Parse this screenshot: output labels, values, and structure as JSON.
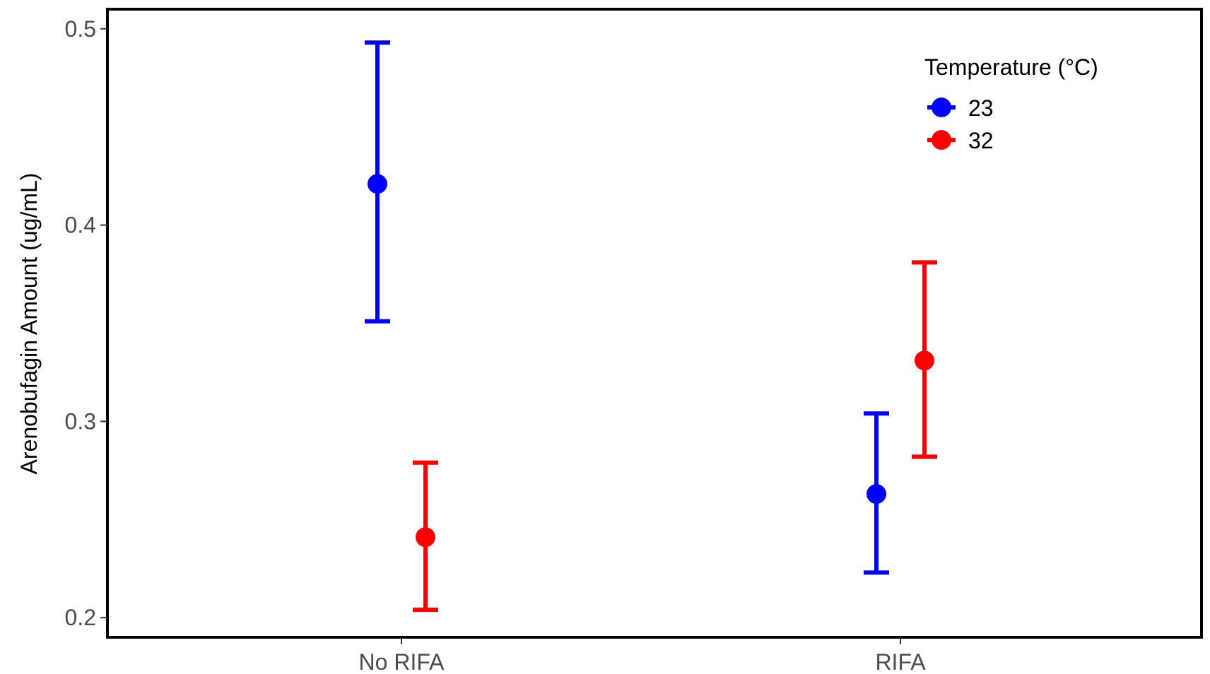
{
  "chart_data": {
    "type": "scatter",
    "categories": [
      "No RIFA",
      "RIFA"
    ],
    "ylabel": "Arenobufagin Amount (ug/mL)",
    "xlabel": "",
    "ylim": [
      0.19,
      0.51
    ],
    "yticks": [
      0.2,
      0.3,
      0.4,
      0.5
    ],
    "ytick_labels": [
      "0.2",
      "0.3",
      "0.4",
      "0.5"
    ],
    "grid": false,
    "legend": {
      "title": "Temperature (°C)",
      "position": "top-right"
    },
    "series": [
      {
        "name": "23",
        "color": "#0000ff",
        "values": [
          0.421,
          0.263
        ],
        "lower": [
          0.351,
          0.223
        ],
        "upper": [
          0.493,
          0.304
        ]
      },
      {
        "name": "32",
        "color": "#ff0000",
        "values": [
          0.241,
          0.331
        ],
        "lower": [
          0.204,
          0.282
        ],
        "upper": [
          0.279,
          0.381
        ]
      }
    ]
  }
}
